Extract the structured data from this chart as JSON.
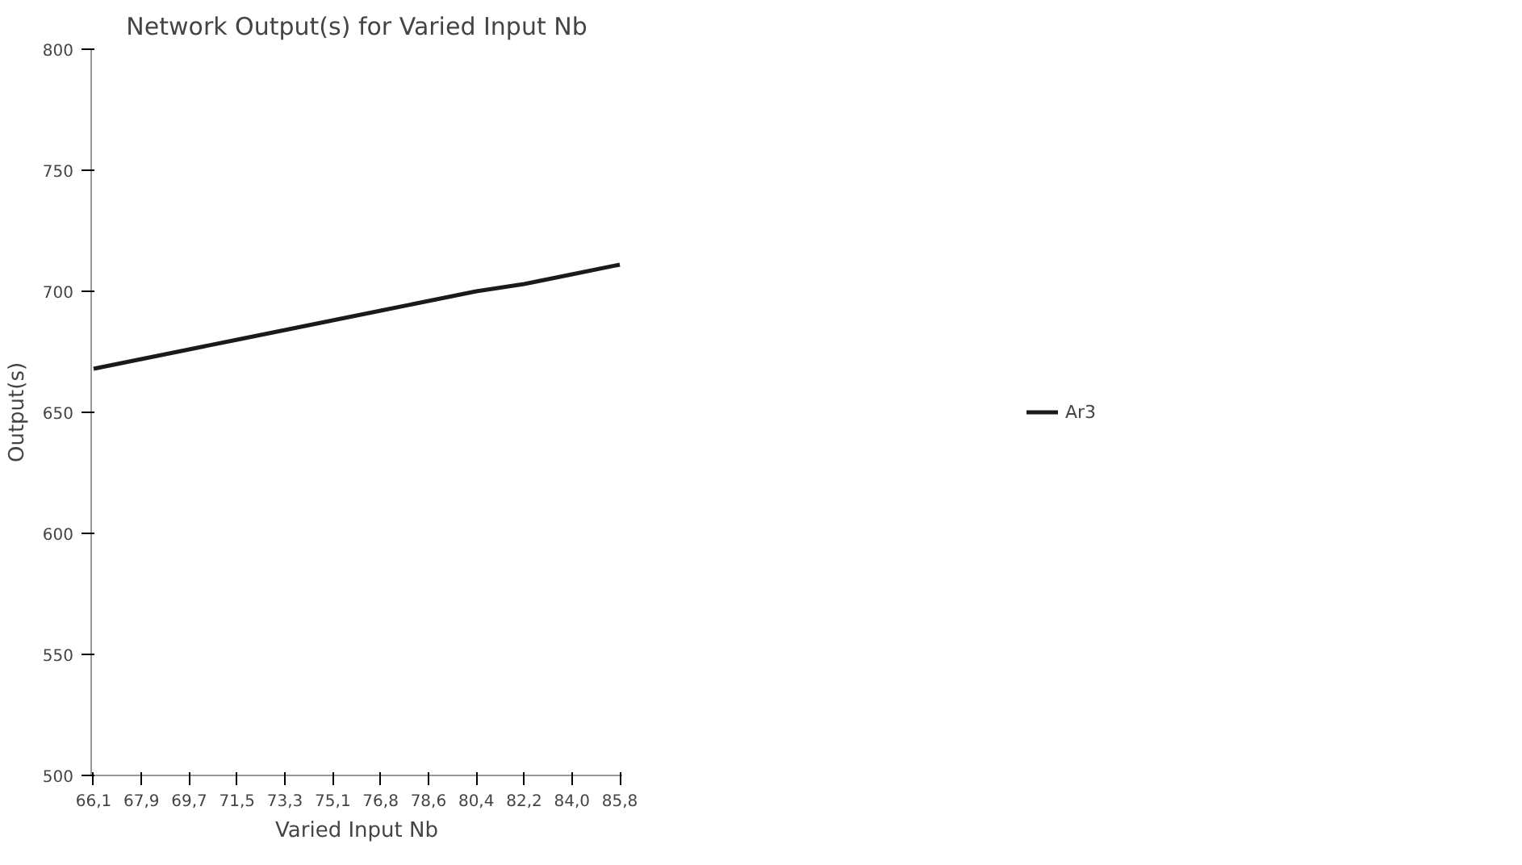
{
  "chart_data": {
    "type": "line",
    "title": "Network Output(s) for Varied Input Nb",
    "xlabel": "Varied Input Nb",
    "ylabel": "Output(s)",
    "categories": [
      "66,1",
      "67,9",
      "69,7",
      "71,5",
      "73,3",
      "75,1",
      "76,8",
      "78,6",
      "80,4",
      "82,2",
      "84,0",
      "85,8"
    ],
    "series": [
      {
        "name": "Ar3",
        "color": "#1a1a1a",
        "values": [
          668,
          672,
          676,
          680,
          684,
          688,
          692,
          696,
          700,
          703,
          707,
          711
        ]
      }
    ],
    "ylim": [
      500,
      800
    ],
    "yticks": [
      500,
      550,
      600,
      650,
      700,
      750,
      800
    ],
    "grid": false,
    "legend": "right"
  }
}
